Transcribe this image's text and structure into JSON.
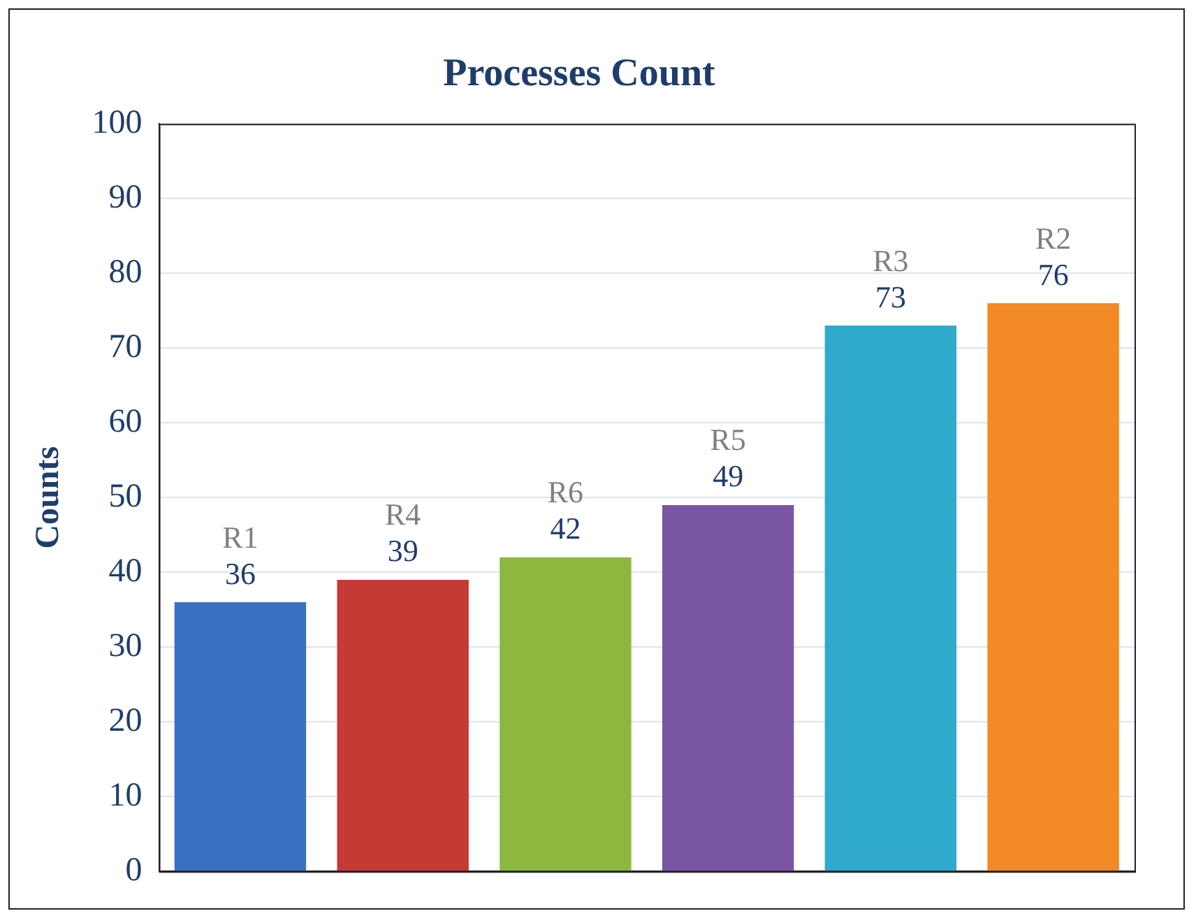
{
  "chart_data": {
    "type": "bar",
    "title": "Processes Count",
    "ylabel": "Counts",
    "categories": [
      "R1",
      "R4",
      "R6",
      "R5",
      "R3",
      "R2"
    ],
    "values": [
      36,
      39,
      42,
      49,
      73,
      76
    ],
    "colors": [
      "#3a70c0",
      "#c63a35",
      "#8cb840",
      "#7a55a2",
      "#30aacc",
      "#f28a26"
    ],
    "ylim": [
      0,
      100
    ],
    "yticks": [
      0,
      10,
      20,
      30,
      40,
      50,
      60,
      70,
      80,
      90,
      100
    ],
    "grid": "y",
    "data_labels": true,
    "tick_labels": "y",
    "legend": false
  }
}
